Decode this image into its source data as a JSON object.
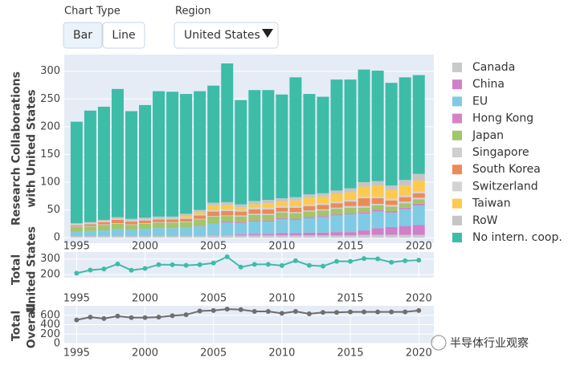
{
  "controls": {
    "chart_type_label": "Chart Type",
    "chart_type_options": [
      "Bar",
      "Line"
    ],
    "region_label": "Region",
    "region_value": "United States"
  },
  "chart_data": [
    {
      "type": "bar",
      "stacked": true,
      "ylabel": [
        "Research Collaborations",
        "with United States"
      ],
      "x": [
        1995,
        1996,
        1997,
        1998,
        1999,
        2000,
        2001,
        2002,
        2003,
        2004,
        2005,
        2006,
        2007,
        2008,
        2009,
        2010,
        2011,
        2012,
        2013,
        2014,
        2015,
        2016,
        2017,
        2018,
        2019,
        2020
      ],
      "xlim": [
        1994.1,
        2021.1
      ],
      "xticks": [
        1995,
        2000,
        2005,
        2010,
        2015,
        2020
      ],
      "ylim": [
        -10,
        330
      ],
      "yticks": [
        0,
        50,
        100,
        150,
        200,
        250,
        300
      ],
      "grid": true,
      "legend": "right",
      "series": [
        {
          "name": "Canada",
          "color": "#c9c9c9",
          "values": [
            3,
            3,
            3,
            3,
            3,
            3,
            3,
            3,
            3,
            3,
            4,
            4,
            4,
            4,
            4,
            4,
            4,
            4,
            4,
            4,
            4,
            5,
            5,
            5,
            5,
            5
          ]
        },
        {
          "name": "China",
          "color": "#d07fc9",
          "values": [
            0,
            0,
            0,
            0,
            0,
            0,
            0,
            0,
            0,
            0,
            1,
            1,
            2,
            3,
            3,
            4,
            4,
            5,
            5,
            6,
            6,
            8,
            12,
            14,
            16,
            18
          ]
        },
        {
          "name": "EU",
          "color": "#7fcbe3",
          "values": [
            8,
            9,
            10,
            12,
            11,
            13,
            14,
            14,
            15,
            17,
            20,
            22,
            20,
            22,
            22,
            25,
            24,
            26,
            28,
            30,
            32,
            30,
            30,
            26,
            30,
            35
          ]
        },
        {
          "name": "Hong Kong",
          "color": "#d782c6",
          "values": [
            0,
            0,
            0,
            0,
            0,
            0,
            0,
            0,
            0,
            1,
            1,
            2,
            2,
            2,
            2,
            2,
            2,
            2,
            2,
            2,
            2,
            3,
            3,
            3,
            3,
            3
          ]
        },
        {
          "name": "Japan",
          "color": "#a3c56c",
          "values": [
            8,
            8,
            10,
            10,
            9,
            9,
            10,
            10,
            10,
            12,
            12,
            10,
            10,
            10,
            10,
            10,
            10,
            10,
            10,
            10,
            10,
            8,
            8,
            8,
            8,
            8
          ]
        },
        {
          "name": "Singapore",
          "color": "#cfcfcf",
          "values": [
            1,
            1,
            1,
            1,
            1,
            1,
            1,
            1,
            1,
            1,
            1,
            1,
            2,
            2,
            2,
            2,
            2,
            2,
            2,
            2,
            3,
            3,
            3,
            3,
            3,
            3
          ]
        },
        {
          "name": "South Korea",
          "color": "#ec8b57",
          "values": [
            2,
            3,
            4,
            6,
            5,
            5,
            5,
            5,
            5,
            6,
            8,
            8,
            7,
            8,
            8,
            7,
            8,
            8,
            8,
            8,
            8,
            14,
            10,
            8,
            8,
            8
          ]
        },
        {
          "name": "Switzerland",
          "color": "#d3d3d3",
          "values": [
            2,
            2,
            2,
            2,
            2,
            2,
            2,
            2,
            2,
            2,
            3,
            3,
            3,
            3,
            3,
            3,
            3,
            3,
            3,
            3,
            3,
            3,
            3,
            3,
            3,
            3
          ]
        },
        {
          "name": "Taiwan",
          "color": "#fdc94f",
          "values": [
            0,
            0,
            0,
            0,
            0,
            0,
            0,
            0,
            3,
            4,
            8,
            8,
            5,
            6,
            8,
            8,
            10,
            12,
            12,
            14,
            14,
            18,
            20,
            16,
            18,
            20
          ]
        },
        {
          "name": "RoW",
          "color": "#c5c5c5",
          "values": [
            2,
            2,
            2,
            3,
            3,
            3,
            3,
            3,
            4,
            4,
            5,
            5,
            5,
            6,
            6,
            6,
            6,
            6,
            6,
            6,
            7,
            8,
            8,
            8,
            10,
            12
          ]
        },
        {
          "name": "No intern. coop.",
          "color": "#3dbca8",
          "values": [
            183,
            201,
            204,
            231,
            194,
            203,
            226,
            225,
            216,
            214,
            211,
            250,
            188,
            200,
            198,
            187,
            216,
            181,
            174,
            200,
            196,
            203,
            199,
            185,
            185,
            178
          ]
        }
      ]
    },
    {
      "type": "line",
      "ylabel": [
        "Total",
        "United States"
      ],
      "color": "#3dbca8",
      "x": [
        1995,
        1996,
        1997,
        1998,
        1999,
        2000,
        2001,
        2002,
        2003,
        2004,
        2005,
        2006,
        2007,
        2008,
        2009,
        2010,
        2011,
        2012,
        2013,
        2014,
        2015,
        2016,
        2017,
        2018,
        2019,
        2020
      ],
      "values": [
        209,
        229,
        236,
        268,
        228,
        239,
        264,
        263,
        259,
        264,
        274,
        314,
        248,
        266,
        266,
        258,
        289,
        259,
        254,
        285,
        285,
        303,
        301,
        279,
        289,
        293
      ],
      "xlim": [
        1994.1,
        2021.1
      ],
      "xticks": [
        1995,
        2000,
        2005,
        2010,
        2015,
        2020
      ],
      "ylim": [
        180,
        345
      ],
      "yticks": [
        200,
        300
      ],
      "grid": true
    },
    {
      "type": "line",
      "ylabel": [
        "Total",
        "Overall"
      ],
      "color": "#6e6e6e",
      "x": [
        1995,
        1996,
        1997,
        1998,
        1999,
        2000,
        2001,
        2002,
        2003,
        2004,
        2005,
        2006,
        2007,
        2008,
        2009,
        2010,
        2011,
        2012,
        2013,
        2014,
        2015,
        2016,
        2017,
        2018,
        2019,
        2020
      ],
      "values": [
        500,
        560,
        530,
        580,
        550,
        550,
        560,
        590,
        610,
        690,
        700,
        730,
        720,
        680,
        680,
        640,
        680,
        630,
        660,
        660,
        670,
        670,
        670,
        670,
        670,
        700
      ],
      "xlim": [
        1994.1,
        2021.1
      ],
      "xticks": [
        1995,
        2000,
        2005,
        2010,
        2015,
        2020
      ],
      "ylim": [
        0,
        800
      ],
      "yticks": [
        0,
        200,
        400,
        600
      ],
      "grid": true
    }
  ],
  "watermark": "半导体行业观察"
}
